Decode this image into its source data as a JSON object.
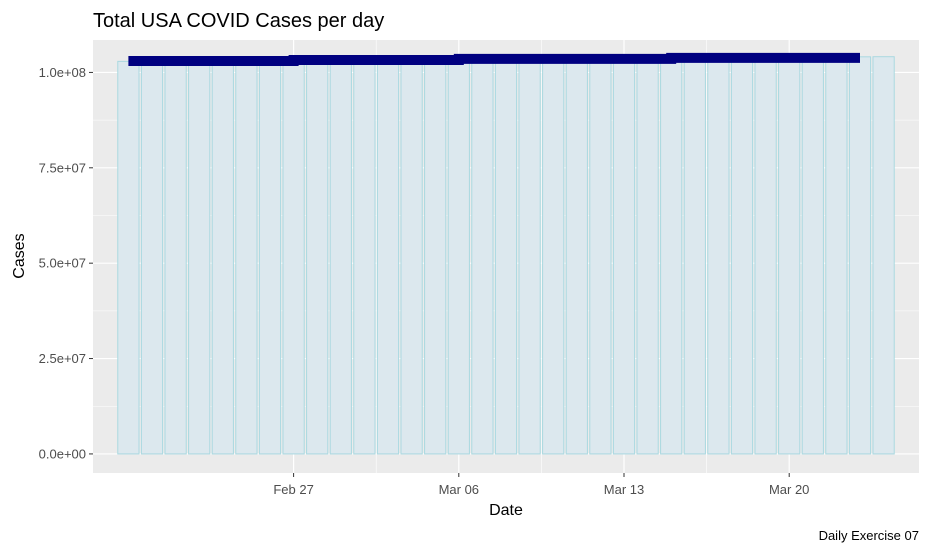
{
  "chart_data": {
    "type": "bar",
    "title": "Total USA COVID Cases per day",
    "xlabel": "Date",
    "ylabel": "Cases",
    "caption": "Daily Exercise 07",
    "x_tick_labels": [
      "Feb 27",
      "Mar 06",
      "Mar 13",
      "Mar 20"
    ],
    "y_tick_labels": [
      "0.0e+00",
      "2.5e+07",
      "5.0e+07",
      "7.5e+07",
      "1.0e+08"
    ],
    "ylim": [
      -5000000,
      108500000
    ],
    "grid": true,
    "categories": [
      "2022-02-20",
      "2022-02-21",
      "2022-02-22",
      "2022-02-23",
      "2022-02-24",
      "2022-02-25",
      "2022-02-26",
      "2022-02-27",
      "2022-02-28",
      "2022-03-01",
      "2022-03-02",
      "2022-03-03",
      "2022-03-04",
      "2022-03-05",
      "2022-03-06",
      "2022-03-07",
      "2022-03-08",
      "2022-03-09",
      "2022-03-10",
      "2022-03-11",
      "2022-03-12",
      "2022-03-13",
      "2022-03-14",
      "2022-03-15",
      "2022-03-16",
      "2022-03-17",
      "2022-03-18",
      "2022-03-19",
      "2022-03-20",
      "2022-03-21",
      "2022-03-22",
      "2022-03-23",
      "2022-03-24"
    ],
    "values": [
      102900000,
      102950000,
      103000000,
      103050000,
      103100000,
      103140000,
      103170000,
      103200000,
      103250000,
      103300000,
      103350000,
      103400000,
      103440000,
      103470000,
      103500000,
      103540000,
      103580000,
      103620000,
      103660000,
      103690000,
      103720000,
      103750000,
      103790000,
      103830000,
      103870000,
      103900000,
      103930000,
      103960000,
      104000000,
      104030000,
      104060000,
      104090000,
      104120000
    ],
    "line": {
      "x": [
        "2022-02-20",
        "2022-02-27",
        "2022-02-27",
        "2022-03-06",
        "2022-03-06",
        "2022-03-15",
        "2022-03-15",
        "2022-03-23"
      ],
      "y": [
        103000000,
        103000000,
        103250000,
        103250000,
        103550000,
        103550000,
        103800000,
        103800000
      ]
    },
    "colors": {
      "bar_fill": "#dce8ee",
      "bar_outline": "#a9d8e0",
      "line": "#000080",
      "panel": "#ebebeb",
      "grid": "#ffffff"
    }
  }
}
